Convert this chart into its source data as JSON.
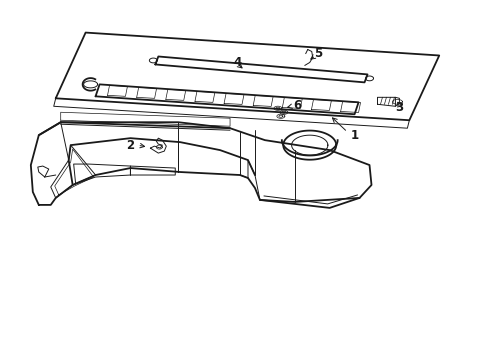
{
  "background_color": "#ffffff",
  "line_color": "#1a1a1a",
  "lw_main": 1.3,
  "lw_thin": 0.7,
  "lw_detail": 0.5,
  "figsize": [
    4.89,
    3.6
  ],
  "dpi": 100
}
